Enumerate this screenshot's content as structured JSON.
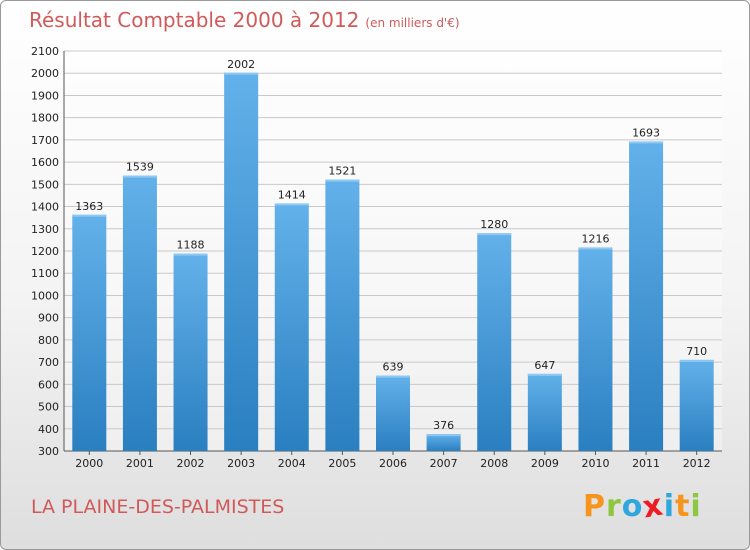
{
  "header": {
    "title": "Résultat Comptable 2000 à 2012",
    "subtitle": "(en milliers d'€)"
  },
  "footer": {
    "city": "LA PLAINE-DES-PALMISTES",
    "logo": [
      "P",
      "r",
      "o",
      "x",
      "i",
      "t",
      "i"
    ]
  },
  "colors": {
    "bar_top": "#63b1ea",
    "bar_bottom": "#2a7fc0",
    "title": "#d05a5a",
    "logo": [
      "#f7941d",
      "#8dc63f",
      "#2ea6de",
      "#ed1c24",
      "#2ea6de",
      "#f7941d",
      "#8dc63f"
    ]
  },
  "chart_data": {
    "type": "bar",
    "categories": [
      "2000",
      "2001",
      "2002",
      "2003",
      "2004",
      "2005",
      "2006",
      "2007",
      "2008",
      "2009",
      "2010",
      "2011",
      "2012"
    ],
    "values": [
      1363,
      1539,
      1188,
      2002,
      1414,
      1521,
      639,
      376,
      1280,
      647,
      1216,
      1693,
      710
    ],
    "yticks": [
      300,
      400,
      500,
      600,
      700,
      800,
      900,
      1000,
      1100,
      1200,
      1300,
      1400,
      1500,
      1600,
      1700,
      1800,
      1900,
      2000,
      2100
    ],
    "ylim": [
      300,
      2100
    ],
    "grid": true
  }
}
